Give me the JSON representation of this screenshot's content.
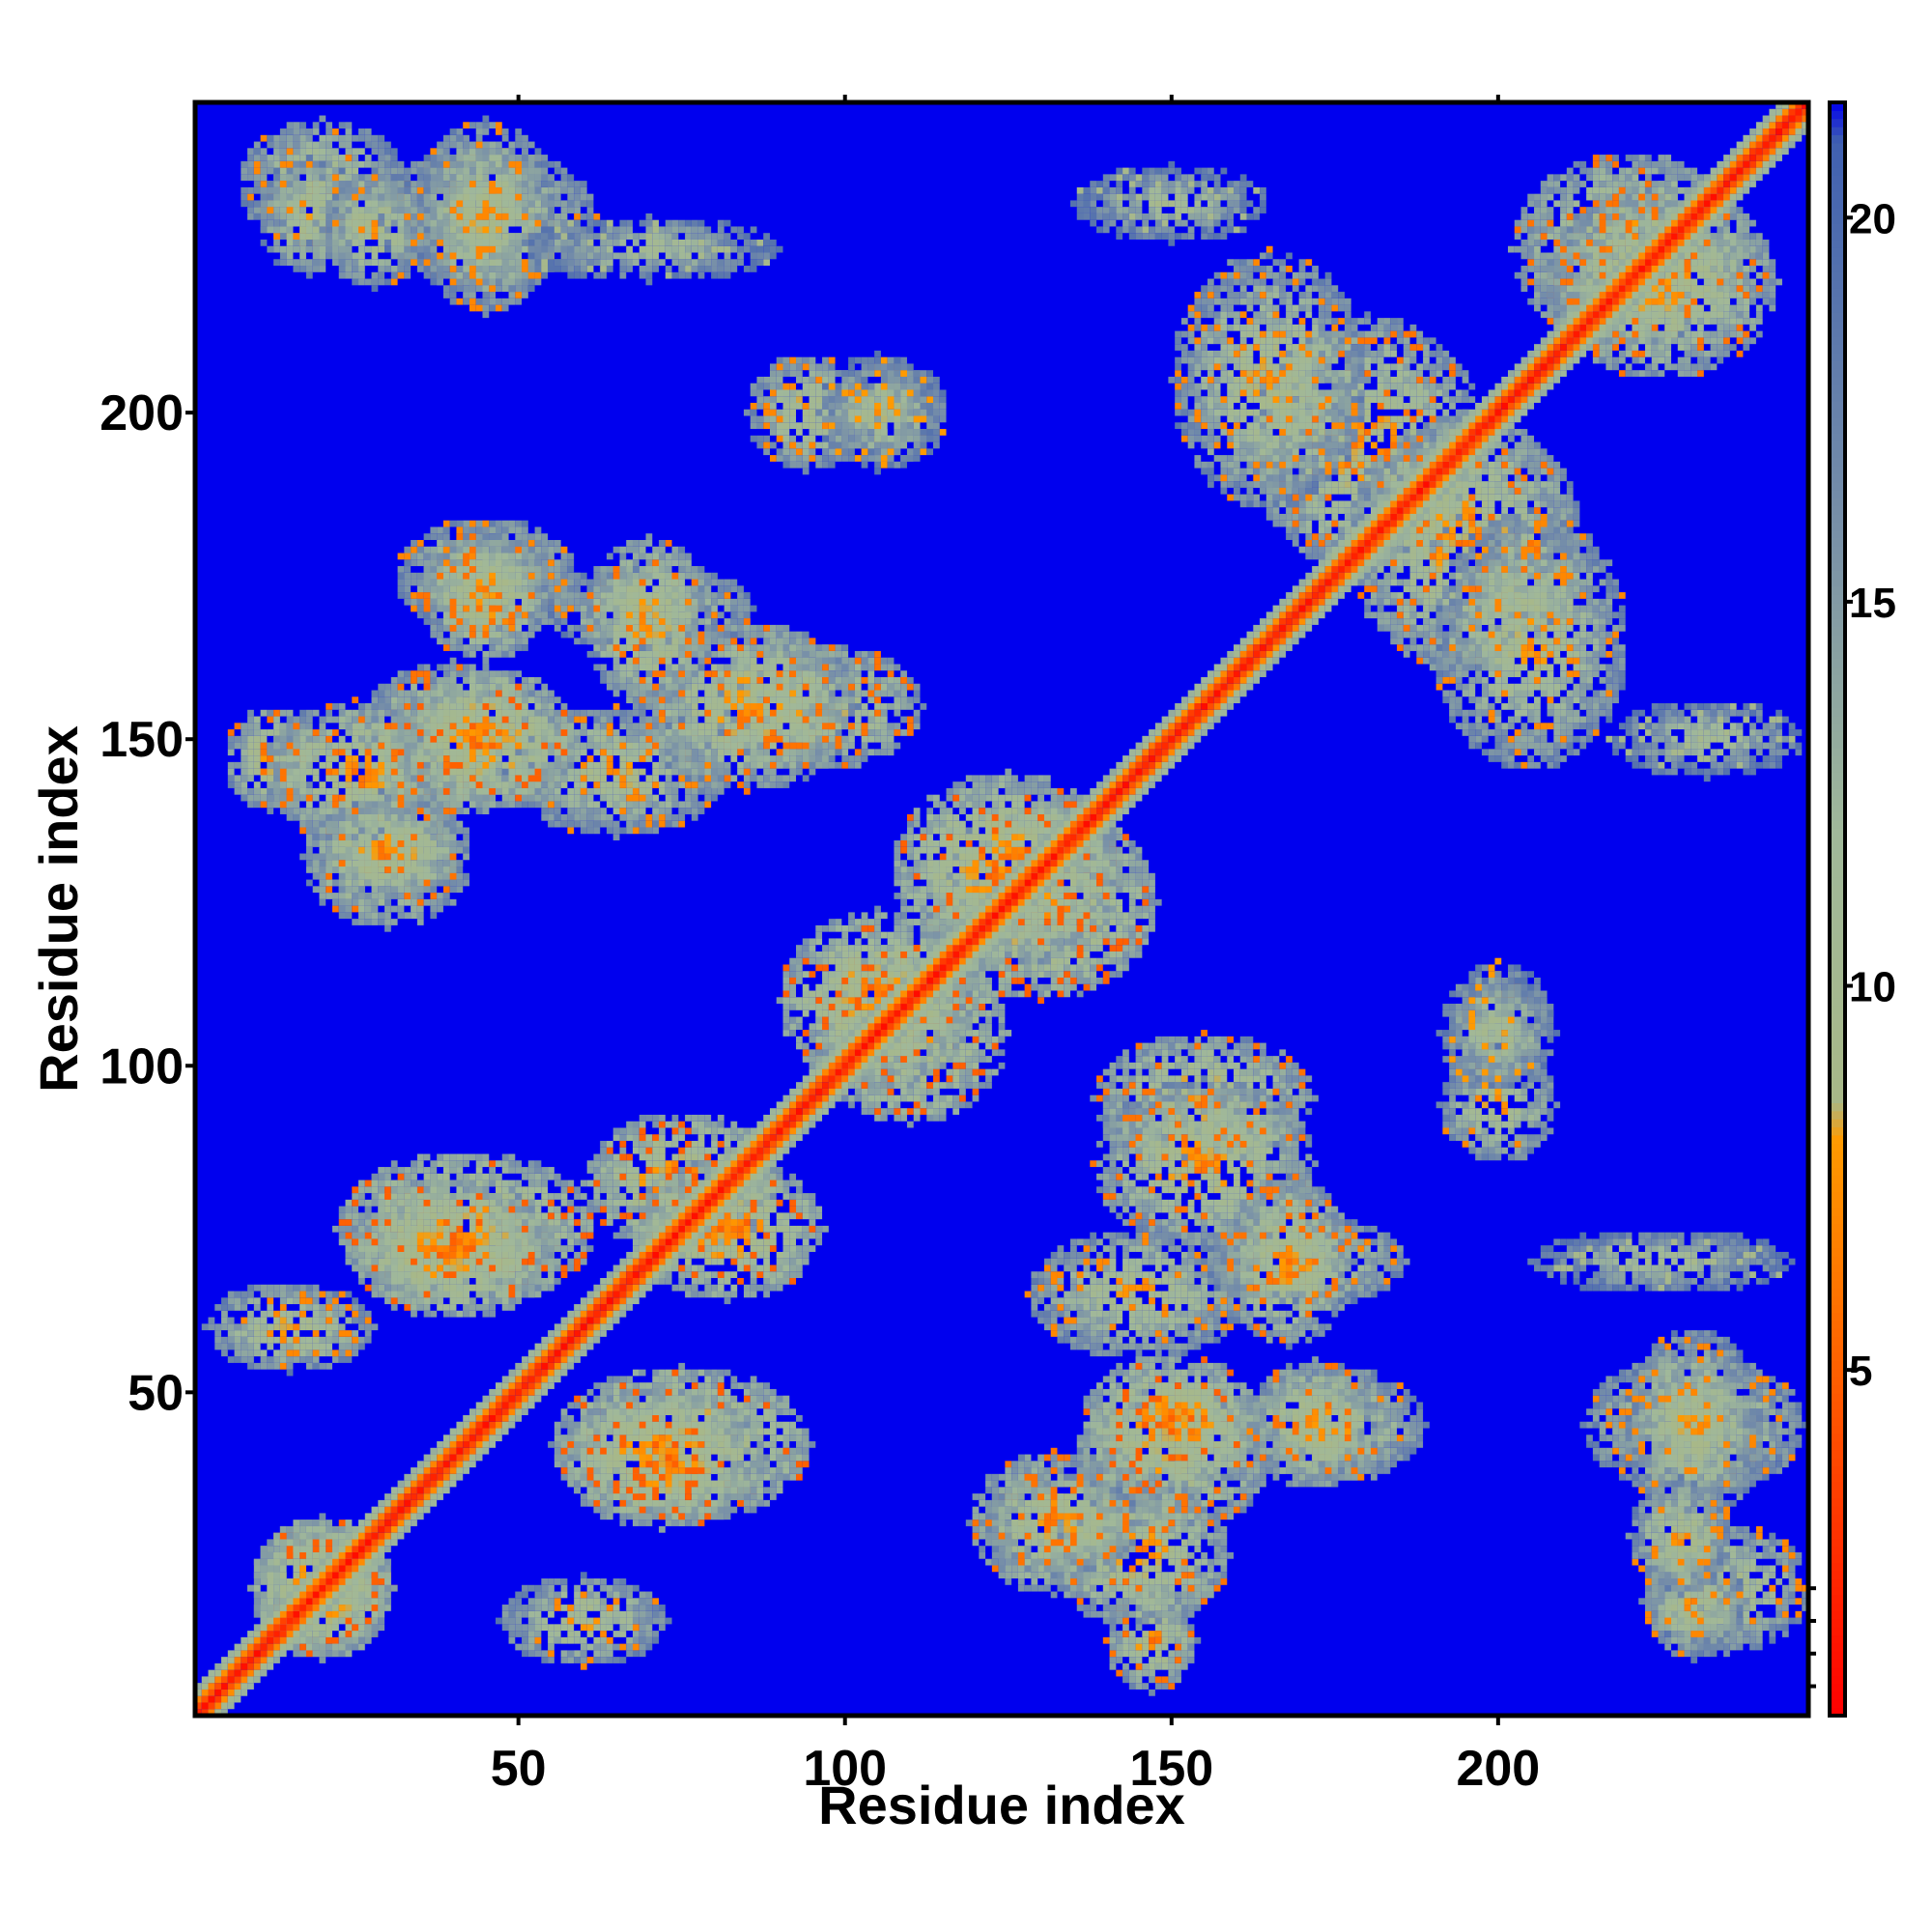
{
  "chart_data": {
    "type": "heatmap",
    "title": "",
    "xlabel": "Residue index",
    "ylabel": "Residue index",
    "xlim": [
      1,
      247
    ],
    "ylim": [
      1,
      247
    ],
    "xticks": [
      50,
      100,
      150,
      200
    ],
    "yticks": [
      50,
      100,
      150,
      200
    ],
    "grid": false,
    "legend": "colorbar-right",
    "colorbar": {
      "range": [
        0.5,
        21.5
      ],
      "ticks": [
        5,
        10,
        15,
        20
      ],
      "stops": [
        {
          "value": 0.5,
          "color": "#ff0000"
        },
        {
          "value": 5.0,
          "color": "#ff6000"
        },
        {
          "value": 8.0,
          "color": "#ff9a00"
        },
        {
          "value": 8.5,
          "color": "#a8b888"
        },
        {
          "value": 12.0,
          "color": "#a0b89a"
        },
        {
          "value": 16.0,
          "color": "#7890a8"
        },
        {
          "value": 21.0,
          "color": "#4060b0"
        },
        {
          "value": 21.5,
          "color": "#0000ee"
        }
      ]
    },
    "background_value": 21.5,
    "diagonal": {
      "from": 1,
      "to": 247,
      "value": 1
    },
    "contact_regions": [
      {
        "cx": 20,
        "cy": 20,
        "w": 22,
        "h": 22,
        "value": 6
      },
      {
        "cx": 60,
        "cy": 15,
        "w": 26,
        "h": 14,
        "value": 8
      },
      {
        "cx": 147,
        "cy": 12,
        "w": 14,
        "h": 16,
        "value": 7
      },
      {
        "cx": 132,
        "cy": 30,
        "w": 26,
        "h": 22,
        "value": 7
      },
      {
        "cx": 150,
        "cy": 40,
        "w": 30,
        "h": 24,
        "value": 7
      },
      {
        "cx": 175,
        "cy": 45,
        "w": 28,
        "h": 18,
        "value": 8
      },
      {
        "cx": 75,
        "cy": 42,
        "w": 40,
        "h": 24,
        "value": 6
      },
      {
        "cx": 40,
        "cy": 72,
        "w": 32,
        "h": 22,
        "value": 6
      },
      {
        "cx": 75,
        "cy": 82,
        "w": 30,
        "h": 22,
        "value": 6
      },
      {
        "cx": 155,
        "cy": 95,
        "w": 34,
        "h": 20,
        "value": 7
      },
      {
        "cx": 145,
        "cy": 65,
        "w": 34,
        "h": 20,
        "value": 8
      },
      {
        "cx": 170,
        "cy": 70,
        "w": 32,
        "h": 14,
        "value": 8
      },
      {
        "cx": 230,
        "cy": 45,
        "w": 34,
        "h": 22,
        "value": 8
      },
      {
        "cx": 235,
        "cy": 20,
        "w": 26,
        "h": 20,
        "value": 8
      },
      {
        "cx": 110,
        "cy": 105,
        "w": 30,
        "h": 28,
        "value": 6
      },
      {
        "cx": 130,
        "cy": 125,
        "w": 36,
        "h": 30,
        "value": 6
      },
      {
        "cx": 25,
        "cy": 145,
        "w": 28,
        "h": 22,
        "value": 7
      },
      {
        "cx": 45,
        "cy": 150,
        "w": 28,
        "h": 22,
        "value": 6
      },
      {
        "cx": 30,
        "cy": 133,
        "w": 24,
        "h": 16,
        "value": 7
      },
      {
        "cx": 85,
        "cy": 155,
        "w": 34,
        "h": 26,
        "value": 7
      },
      {
        "cx": 70,
        "cy": 168,
        "w": 20,
        "h": 26,
        "value": 7
      },
      {
        "cx": 45,
        "cy": 172,
        "w": 20,
        "h": 20,
        "value": 7
      },
      {
        "cx": 180,
        "cy": 195,
        "w": 36,
        "h": 40,
        "value": 7
      },
      {
        "cx": 205,
        "cy": 165,
        "w": 30,
        "h": 40,
        "value": 8
      },
      {
        "cx": 220,
        "cy": 225,
        "w": 36,
        "h": 30,
        "value": 7
      },
      {
        "cx": 45,
        "cy": 230,
        "w": 22,
        "h": 30,
        "value": 8
      },
      {
        "cx": 18,
        "cy": 230,
        "w": 16,
        "h": 18,
        "value": 8
      },
      {
        "cx": 28,
        "cy": 228,
        "w": 16,
        "h": 18,
        "value": 8
      },
      {
        "cx": 94,
        "cy": 200,
        "w": 18,
        "h": 18,
        "value": 8
      },
      {
        "cx": 108,
        "cy": 200,
        "w": 16,
        "h": 16,
        "value": 9
      },
      {
        "cx": 200,
        "cy": 105,
        "w": 18,
        "h": 18,
        "value": 9
      },
      {
        "cx": 232,
        "cy": 150,
        "w": 30,
        "h": 12,
        "value": 10
      },
      {
        "cx": 225,
        "cy": 70,
        "w": 40,
        "h": 10,
        "value": 10
      }
    ]
  }
}
